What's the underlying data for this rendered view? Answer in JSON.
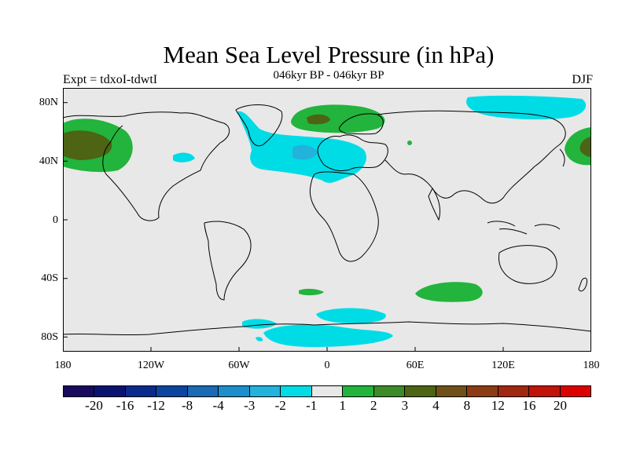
{
  "title": "Mean Sea Level Pressure (in hPa)",
  "subtitle": "046kyr BP - 046kyr BP",
  "left_label": "Expt = tdxoI-tdwtI",
  "right_label": "DJF",
  "map": {
    "background": "#e8e8e8",
    "lat_ticks": [
      "80N",
      "40N",
      "0",
      "40S",
      "80S"
    ],
    "lon_ticks": [
      "180",
      "120W",
      "60W",
      "0",
      "60E",
      "120E",
      "180"
    ]
  },
  "legend": {
    "colors": [
      "#1a0a5e",
      "#0a1470",
      "#0a2a8e",
      "#0a46a0",
      "#1a6ab4",
      "#1c8ecc",
      "#22b2dc",
      "#00dce6",
      "#e8e8e8",
      "#22b43c",
      "#3c8a28",
      "#4c6414",
      "#70501a",
      "#8c3c14",
      "#a02810",
      "#c0140a",
      "#dc0000"
    ],
    "labels": [
      "-20",
      "-16",
      "-12",
      "-8",
      "-4",
      "-3",
      "-2",
      "-1",
      "1",
      "2",
      "3",
      "4",
      "8",
      "12",
      "16",
      "20"
    ]
  }
}
